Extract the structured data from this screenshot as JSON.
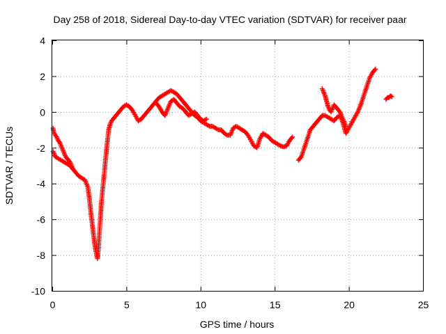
{
  "chart_data": {
    "type": "scatter",
    "title": "Day 258 of 2018, Sidereal Day-to-day VTEC variation (SDTVAR) for receiver paar",
    "xlabel": "GPS time / hours",
    "ylabel": "SDTVAR / TECUs",
    "xlim": [
      0,
      25
    ],
    "ylim": [
      -10,
      4
    ],
    "xticks": [
      "0",
      "5",
      "10",
      "15",
      "20",
      "25"
    ],
    "yticks": [
      "4",
      "2",
      "0",
      "-2",
      "-4",
      "-6",
      "-8",
      "-10"
    ],
    "grid": true,
    "marker": "+",
    "color": "#ff0000",
    "series": [
      {
        "x": [
          0.05,
          0.2,
          0.4,
          0.6,
          0.8,
          1.0,
          1.2,
          1.4,
          1.6,
          1.8,
          2.0,
          2.2,
          2.4,
          2.5,
          2.6,
          2.7,
          2.8,
          2.9,
          3.0,
          3.05,
          3.1,
          3.2,
          3.3,
          3.4,
          3.5,
          3.6,
          3.7,
          3.8,
          3.9,
          4.0,
          4.2,
          4.4,
          4.6,
          4.8,
          5.0,
          5.2,
          5.4,
          5.6,
          5.8,
          6.0,
          6.2,
          6.4,
          6.6,
          6.8,
          7.0,
          7.2,
          7.4,
          7.6,
          7.8,
          8.0,
          8.2,
          8.4,
          8.6,
          8.8,
          9.0,
          9.2,
          9.4,
          9.6,
          9.8,
          10.0,
          10.2,
          10.4,
          10.6,
          10.8,
          11.0,
          11.2,
          11.4,
          11.6,
          11.8,
          12.0,
          12.2,
          12.4,
          12.6,
          12.8,
          13.0,
          13.2,
          13.4,
          13.6,
          13.8,
          14.0,
          14.2,
          14.4,
          14.6,
          14.8,
          15.0,
          15.2,
          15.4,
          15.6,
          15.8,
          16.0,
          16.2
        ],
        "y": [
          -2.2,
          -2.5,
          -2.6,
          -2.7,
          -2.8,
          -2.9,
          -3.0,
          -3.2,
          -3.4,
          -3.6,
          -3.7,
          -3.8,
          -4.2,
          -4.8,
          -5.6,
          -6.3,
          -7.0,
          -7.6,
          -8.0,
          -8.2,
          -7.8,
          -6.5,
          -5.2,
          -4.3,
          -3.5,
          -2.6,
          -1.8,
          -1.0,
          -0.7,
          -0.5,
          -0.3,
          -0.1,
          0.1,
          0.3,
          0.4,
          0.3,
          0.1,
          -0.2,
          -0.5,
          -0.4,
          -0.2,
          0.0,
          0.2,
          0.4,
          0.6,
          0.8,
          0.9,
          1.0,
          1.1,
          1.2,
          1.1,
          1.0,
          0.8,
          0.6,
          0.4,
          0.2,
          0.0,
          -0.2,
          -0.3,
          -0.5,
          -0.6,
          -0.7,
          -0.8,
          -0.8,
          -0.9,
          -1.0,
          -1.0,
          -1.2,
          -1.3,
          -1.3,
          -0.9,
          -0.8,
          -0.9,
          -1.0,
          -1.1,
          -1.3,
          -1.6,
          -1.9,
          -2.0,
          -1.5,
          -1.2,
          -1.3,
          -1.4,
          -1.6,
          -1.7,
          -1.8,
          -1.9,
          -1.95,
          -1.9,
          -1.6,
          -1.4
        ]
      },
      {
        "x": [
          0.05,
          0.1,
          0.2,
          0.3,
          0.4,
          0.5,
          0.6,
          0.7,
          0.8,
          0.9,
          1.0,
          1.1,
          1.2,
          1.3,
          1.4,
          1.5
        ],
        "y": [
          -0.9,
          -1.1,
          -1.3,
          -1.4,
          -1.6,
          -1.7,
          -1.9,
          -2.1,
          -2.3,
          -2.5,
          -2.6,
          -2.7,
          -2.8,
          -3.0,
          -3.2,
          -3.3
        ]
      },
      {
        "x": [
          7.0,
          7.2,
          7.4,
          7.6,
          7.8,
          8.0,
          8.2,
          8.4,
          8.6,
          8.8,
          9.0,
          9.2,
          9.4,
          9.6,
          9.8,
          10.0,
          10.2,
          10.4
        ],
        "y": [
          0.5,
          0.3,
          0.0,
          -0.2,
          0.2,
          0.6,
          0.7,
          0.5,
          0.3,
          0.2,
          0.0,
          -0.2,
          -0.1,
          0.0,
          -0.2,
          -0.4,
          -0.5,
          -0.4
        ]
      },
      {
        "x": [
          16.6,
          16.8,
          17.0,
          17.2,
          17.4,
          17.6,
          17.8,
          18.0,
          18.2,
          18.4,
          18.6,
          18.8,
          19.0,
          19.2,
          19.4,
          19.6,
          19.8,
          20.0,
          20.2,
          20.4,
          20.6,
          20.8,
          21.0,
          21.2,
          21.4,
          21.6,
          21.8
        ],
        "y": [
          -2.7,
          -2.5,
          -2.0,
          -1.5,
          -1.0,
          -0.8,
          -0.6,
          -0.4,
          -0.2,
          -0.2,
          -0.3,
          -0.4,
          -0.5,
          -0.3,
          -0.2,
          -0.6,
          -1.2,
          -0.9,
          -0.6,
          -0.3,
          0.0,
          0.4,
          0.9,
          1.4,
          1.9,
          2.2,
          2.4
        ]
      },
      {
        "x": [
          18.2,
          18.3,
          18.4,
          18.5,
          18.6,
          18.7,
          18.8,
          18.9,
          19.0,
          19.1,
          19.2,
          19.3,
          19.4,
          19.5,
          19.6,
          19.7,
          19.8
        ],
        "y": [
          1.3,
          1.1,
          0.9,
          0.6,
          0.3,
          0.1,
          0.0,
          0.2,
          0.4,
          0.3,
          0.2,
          0.1,
          0.0,
          -0.2,
          -0.4,
          -0.6,
          -0.8
        ]
      },
      {
        "x": [
          22.5,
          22.6,
          22.7,
          22.8,
          22.9
        ],
        "y": [
          0.7,
          0.8,
          0.8,
          0.9,
          0.85
        ]
      }
    ]
  }
}
